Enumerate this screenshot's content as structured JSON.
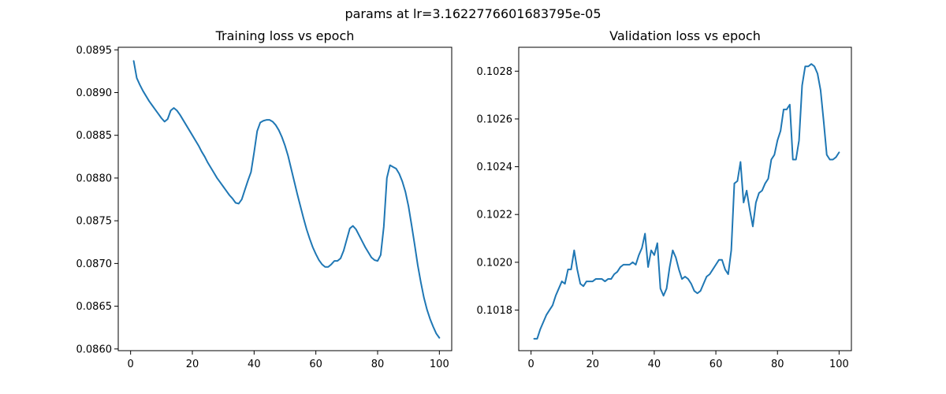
{
  "suptitle": "params at lr=3.1622776601683795e-05",
  "colors": {
    "series": "#1f77b4",
    "axis": "#000000",
    "background": "#ffffff"
  },
  "chart_data": [
    {
      "type": "line",
      "title": "Training loss vs epoch",
      "xlabel": "",
      "ylabel": "",
      "xlim": [
        -4,
        104
      ],
      "ylim": [
        0.08598,
        0.08953
      ],
      "xticks": [
        0,
        20,
        40,
        60,
        80,
        100
      ],
      "yticks": [
        0.086,
        0.0865,
        0.087,
        0.0875,
        0.088,
        0.0885,
        0.089,
        0.0895
      ],
      "ytick_labels": [
        "0.0860",
        "0.0865",
        "0.0870",
        "0.0875",
        "0.0880",
        "0.0885",
        "0.0890",
        "0.0895"
      ],
      "grid": false,
      "series": [
        {
          "color": "#1f77b4",
          "x": [
            1,
            2,
            3,
            4,
            5,
            6,
            7,
            8,
            9,
            10,
            11,
            12,
            13,
            14,
            15,
            16,
            17,
            18,
            19,
            20,
            21,
            22,
            23,
            24,
            25,
            26,
            27,
            28,
            29,
            30,
            31,
            32,
            33,
            34,
            35,
            36,
            37,
            38,
            39,
            40,
            41,
            42,
            43,
            44,
            45,
            46,
            47,
            48,
            49,
            50,
            51,
            52,
            53,
            54,
            55,
            56,
            57,
            58,
            59,
            60,
            61,
            62,
            63,
            64,
            65,
            66,
            67,
            68,
            69,
            70,
            71,
            72,
            73,
            74,
            75,
            76,
            77,
            78,
            79,
            80,
            81,
            82,
            83,
            84,
            85,
            86,
            87,
            88,
            89,
            90,
            91,
            92,
            93,
            94,
            95,
            96,
            97,
            98,
            99,
            100
          ],
          "y": [
            0.08937,
            0.08917,
            0.08909,
            0.08902,
            0.08896,
            0.0889,
            0.08885,
            0.0888,
            0.08875,
            0.0887,
            0.08866,
            0.08869,
            0.08879,
            0.08882,
            0.08879,
            0.08874,
            0.08868,
            0.08862,
            0.08856,
            0.0885,
            0.08844,
            0.08838,
            0.08831,
            0.08825,
            0.08818,
            0.08812,
            0.08806,
            0.088,
            0.08795,
            0.0879,
            0.08785,
            0.0878,
            0.08776,
            0.08771,
            0.0877,
            0.08775,
            0.08786,
            0.08797,
            0.08807,
            0.0883,
            0.08855,
            0.08865,
            0.08867,
            0.08868,
            0.08868,
            0.08866,
            0.08862,
            0.08856,
            0.08848,
            0.08838,
            0.08826,
            0.08811,
            0.08796,
            0.08781,
            0.08767,
            0.08753,
            0.0874,
            0.08729,
            0.08719,
            0.08711,
            0.08704,
            0.08699,
            0.08696,
            0.08696,
            0.08699,
            0.08703,
            0.08703,
            0.08706,
            0.08715,
            0.08728,
            0.08741,
            0.08744,
            0.0874,
            0.08733,
            0.08726,
            0.08719,
            0.08713,
            0.08707,
            0.08704,
            0.08703,
            0.0871,
            0.08743,
            0.088,
            0.08815,
            0.08813,
            0.08811,
            0.08805,
            0.08796,
            0.08784,
            0.08767,
            0.08745,
            0.08722,
            0.08698,
            0.08678,
            0.0866,
            0.08646,
            0.08635,
            0.08626,
            0.08618,
            0.08613
          ]
        }
      ]
    },
    {
      "type": "line",
      "title": "Validation loss vs epoch",
      "xlabel": "",
      "ylabel": "",
      "xlim": [
        -4,
        104
      ],
      "ylim": [
        0.10163,
        0.1029
      ],
      "xticks": [
        0,
        20,
        40,
        60,
        80,
        100
      ],
      "yticks": [
        0.1018,
        0.102,
        0.1022,
        0.1024,
        0.1026,
        0.1028
      ],
      "ytick_labels": [
        "0.1018",
        "0.1020",
        "0.1022",
        "0.1024",
        "0.1026",
        "0.1028"
      ],
      "grid": false,
      "series": [
        {
          "color": "#1f77b4",
          "x": [
            1,
            2,
            3,
            4,
            5,
            6,
            7,
            8,
            9,
            10,
            11,
            12,
            13,
            14,
            15,
            16,
            17,
            18,
            19,
            20,
            21,
            22,
            23,
            24,
            25,
            26,
            27,
            28,
            29,
            30,
            31,
            32,
            33,
            34,
            35,
            36,
            37,
            38,
            39,
            40,
            41,
            42,
            43,
            44,
            45,
            46,
            47,
            48,
            49,
            50,
            51,
            52,
            53,
            54,
            55,
            56,
            57,
            58,
            59,
            60,
            61,
            62,
            63,
            64,
            65,
            66,
            67,
            68,
            69,
            70,
            71,
            72,
            73,
            74,
            75,
            76,
            77,
            78,
            79,
            80,
            81,
            82,
            83,
            84,
            85,
            86,
            87,
            88,
            89,
            90,
            91,
            92,
            93,
            94,
            95,
            96,
            97,
            98,
            99,
            100
          ],
          "y": [
            0.10168,
            0.10168,
            0.10172,
            0.10175,
            0.10178,
            0.1018,
            0.10182,
            0.10186,
            0.10189,
            0.10192,
            0.10191,
            0.10197,
            0.10197,
            0.10205,
            0.10197,
            0.10191,
            0.1019,
            0.10192,
            0.10192,
            0.10192,
            0.10193,
            0.10193,
            0.10193,
            0.10192,
            0.10193,
            0.10193,
            0.10195,
            0.10196,
            0.10198,
            0.10199,
            0.10199,
            0.10199,
            0.102,
            0.10199,
            0.10203,
            0.10206,
            0.10212,
            0.10198,
            0.10205,
            0.10203,
            0.10208,
            0.10189,
            0.10186,
            0.10189,
            0.10198,
            0.10205,
            0.10202,
            0.10197,
            0.10193,
            0.10194,
            0.10193,
            0.10191,
            0.10188,
            0.10187,
            0.10188,
            0.10191,
            0.10194,
            0.10195,
            0.10197,
            0.10199,
            0.10201,
            0.10201,
            0.10197,
            0.10195,
            0.10205,
            0.10233,
            0.10234,
            0.10242,
            0.10225,
            0.1023,
            0.10222,
            0.10215,
            0.10225,
            0.10229,
            0.1023,
            0.10233,
            0.10235,
            0.10243,
            0.10245,
            0.10251,
            0.10255,
            0.10264,
            0.10264,
            0.10266,
            0.10243,
            0.10243,
            0.10251,
            0.10274,
            0.10282,
            0.10282,
            0.10283,
            0.10282,
            0.10279,
            0.10272,
            0.10259,
            0.10245,
            0.10243,
            0.10243,
            0.10244,
            0.10246
          ]
        }
      ]
    }
  ]
}
